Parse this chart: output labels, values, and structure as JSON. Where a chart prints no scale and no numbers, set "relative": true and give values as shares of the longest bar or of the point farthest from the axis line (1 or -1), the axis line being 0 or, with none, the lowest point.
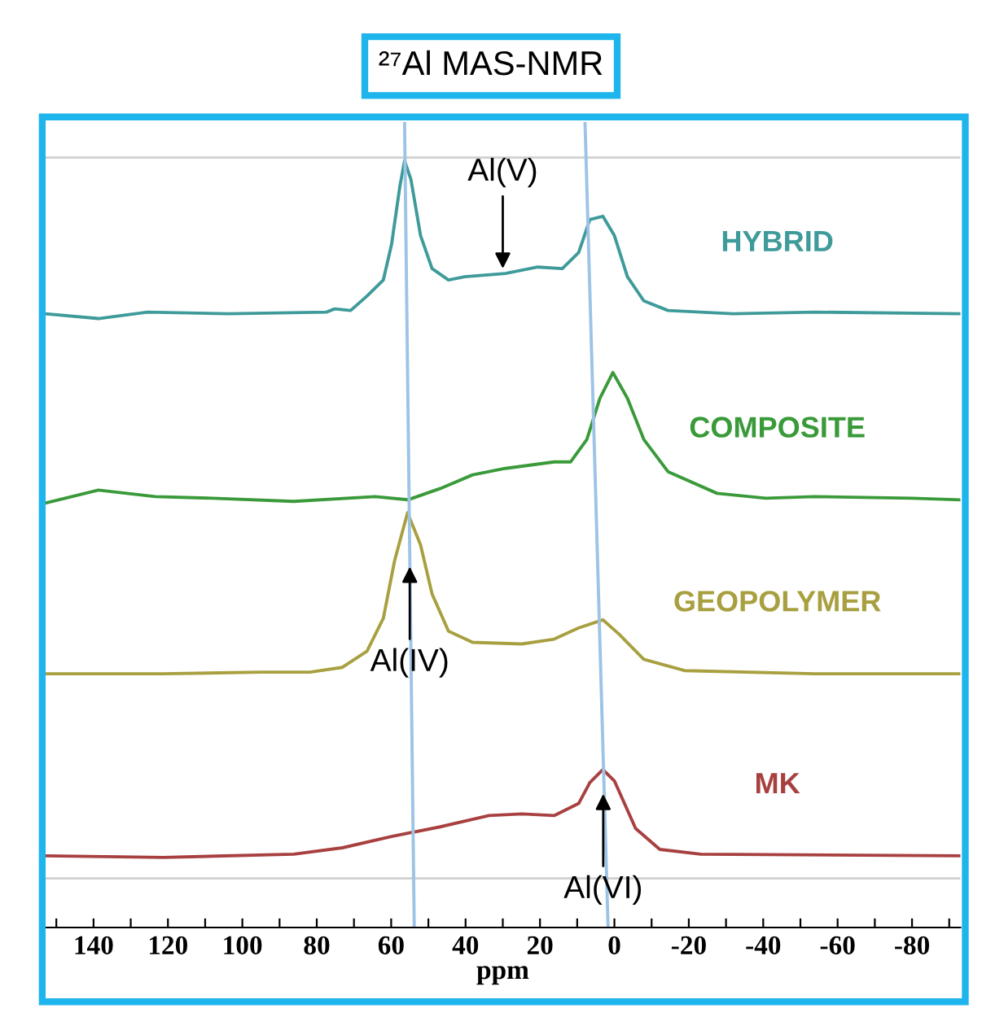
{
  "chart_data": {
    "type": "line",
    "title": "²⁷Al MAS-NMR",
    "xlabel": "ppm",
    "relative": true,
    "legend": false,
    "grid": false,
    "marker": "none",
    "line_style": "solid",
    "xlim": [
      153,
      -93
    ],
    "xticks": [
      {
        "value": 150,
        "label": null
      },
      140,
      {
        "value": 130,
        "label": null
      },
      120,
      {
        "value": 110,
        "label": null
      },
      100,
      {
        "value": 90,
        "label": null
      },
      80,
      {
        "value": 70,
        "label": null
      },
      60,
      {
        "value": 50,
        "label": null
      },
      40,
      {
        "value": 30,
        "label": null
      },
      20,
      {
        "value": 10,
        "label": null
      },
      0,
      {
        "value": -10,
        "label": null
      },
      -20,
      {
        "value": -30,
        "label": null
      },
      -40,
      {
        "value": -50,
        "label": null
      },
      -60,
      {
        "value": -70,
        "label": null
      },
      -80,
      {
        "value": -90,
        "label": null
      }
    ],
    "series": [
      {
        "name": "HYBRID",
        "color": "#3f9a9a",
        "x": [
          153,
          138.7,
          125.5,
          103.7,
          77.4,
          75.2,
          70.9,
          66.5,
          62.1,
          59.9,
          57.7,
          56.4,
          54.7,
          52.1,
          49,
          44.6,
          40.2,
          29.3,
          20.6,
          14,
          9.6,
          6.6,
          3.1,
          0,
          -3.5,
          -7.9,
          -14.4,
          -31.9,
          -53.8,
          -93
        ],
        "values": [
          0.762,
          0.756,
          0.764,
          0.762,
          0.764,
          0.768,
          0.766,
          0.784,
          0.804,
          0.848,
          0.919,
          0.952,
          0.929,
          0.859,
          0.818,
          0.804,
          0.808,
          0.812,
          0.82,
          0.818,
          0.838,
          0.879,
          0.883,
          0.859,
          0.808,
          0.778,
          0.766,
          0.762,
          0.764,
          0.762
        ]
      },
      {
        "name": "COMPOSITE",
        "color": "#3a9a3a",
        "x": [
          153,
          138.7,
          123.4,
          108,
          86.2,
          64.3,
          55.5,
          46.8,
          38.1,
          29.3,
          16.2,
          11.8,
          7.4,
          3.9,
          0.4,
          -3.5,
          -7.9,
          -14.4,
          -27.6,
          -40.7,
          -53.8,
          -80,
          -93
        ],
        "values": [
          0.527,
          0.543,
          0.535,
          0.533,
          0.529,
          0.535,
          0.531,
          0.545,
          0.562,
          0.57,
          0.578,
          0.578,
          0.606,
          0.657,
          0.689,
          0.657,
          0.606,
          0.566,
          0.539,
          0.533,
          0.535,
          0.533,
          0.531
        ]
      },
      {
        "name": "GEOPOLYMER",
        "color": "#a8a040",
        "x": [
          153,
          121.2,
          94.9,
          81.8,
          73.1,
          66.5,
          62.1,
          59.1,
          55.6,
          52.1,
          49,
          44.6,
          38.1,
          24.9,
          16.2,
          9.6,
          3.1,
          -1.3,
          -7.9,
          -18.8,
          -53.8,
          -93
        ],
        "values": [
          0.315,
          0.315,
          0.317,
          0.317,
          0.323,
          0.343,
          0.384,
          0.455,
          0.515,
          0.475,
          0.414,
          0.368,
          0.354,
          0.352,
          0.358,
          0.372,
          0.382,
          0.364,
          0.333,
          0.319,
          0.315,
          0.315
        ]
      },
      {
        "name": "MK",
        "color": "#a84040",
        "x": [
          153,
          121.2,
          86.2,
          73.1,
          59.9,
          46.8,
          33.7,
          24.9,
          16.2,
          9.6,
          6.6,
          3.1,
          0,
          -5.7,
          -12.2,
          -23.2,
          -93
        ],
        "values": [
          0.089,
          0.087,
          0.091,
          0.099,
          0.113,
          0.125,
          0.139,
          0.141,
          0.139,
          0.154,
          0.18,
          0.196,
          0.182,
          0.123,
          0.097,
          0.091,
          0.089
        ]
      },
      {
        "color": "#9dc3e6",
        "x": [
          56.4,
          53.8
        ],
        "values": [
          1,
          0
        ]
      },
      {
        "color": "#9dc3e6",
        "x": [
          7.9,
          1.7
        ],
        "values": [
          1,
          0
        ]
      }
    ],
    "ref_lines": [
      {
        "axis": "y",
        "value": 0.956,
        "color": "#d0d0d0"
      },
      {
        "axis": "y",
        "value": 0.061,
        "color": "#d0d0d0"
      }
    ],
    "annotations": [
      {
        "text": "Al(V)",
        "x": 30,
        "y": 0.818
      },
      {
        "text": "Al(IV)",
        "x": 55,
        "y": 0.448
      },
      {
        "text": "Al(VI)",
        "x": 3,
        "y": 0.166
      }
    ]
  }
}
